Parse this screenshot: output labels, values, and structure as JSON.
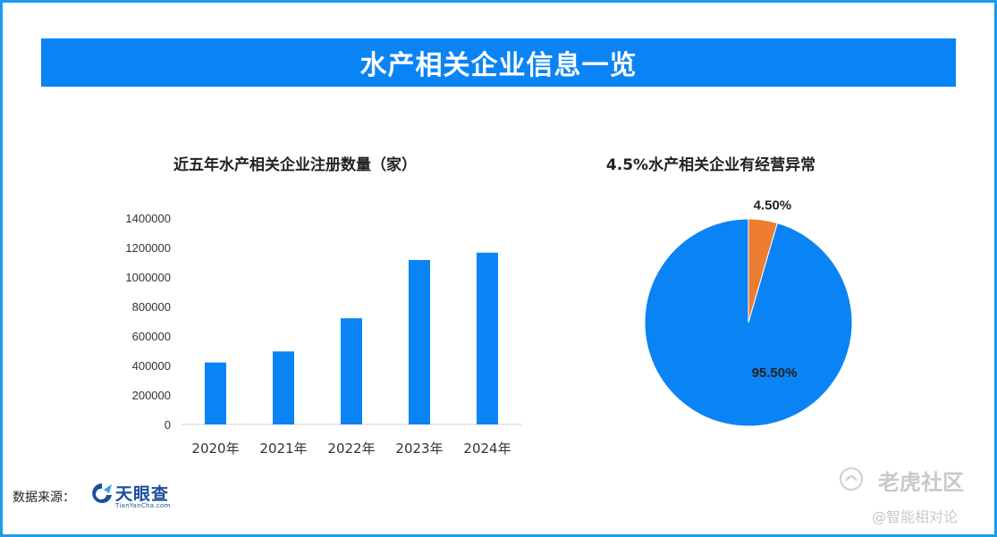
{
  "banner_title": "水产相关企业信息一览",
  "source_label": "数据来源：",
  "logo": {
    "name": "天眼查",
    "sub": "TianYanCha.com"
  },
  "watermark": {
    "line1": "老虎社区",
    "line2": "@智能相对论"
  },
  "colors": {
    "accent": "#0a84f5",
    "orange": "#ed7d31",
    "border": "#1a9bf0"
  },
  "chart_data": [
    {
      "type": "bar",
      "title": "近五年水产相关企业注册数量（家）",
      "categories": [
        "2020年",
        "2021年",
        "2022年",
        "2023年",
        "2024年"
      ],
      "values": [
        420000,
        495000,
        720000,
        1115000,
        1165000
      ],
      "yticks": [
        "0",
        "200000",
        "400000",
        "600000",
        "800000",
        "1000000",
        "1200000",
        "1400000"
      ],
      "ylim": [
        0,
        1400000
      ],
      "grid": false
    },
    {
      "type": "pie",
      "title": "4.5%水产相关企业有经营异常",
      "slices": [
        {
          "label": "4.50%",
          "value": 4.5,
          "color": "#ed7d31"
        },
        {
          "label": "95.50%",
          "value": 95.5,
          "color": "#0a84f5"
        }
      ]
    }
  ]
}
